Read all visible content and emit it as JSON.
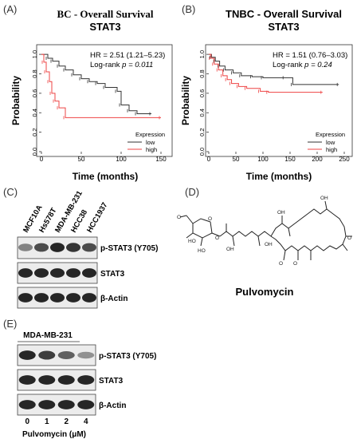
{
  "panels": {
    "A": "(A)",
    "B": "(B)",
    "C": "(C)",
    "D": "(D)",
    "E": "(E)"
  },
  "km_A": {
    "title_line1": "BC - Overall Survival",
    "title_line2": "STAT3",
    "hr": "HR = 2.51 (1.21–5.23)",
    "logrank_prefix": "Log-rank ",
    "logrank_p": "p = 0.011",
    "ylabel": "Probability",
    "xlabel": "Time (months)",
    "legend_title": "Expression",
    "legend_low": "low",
    "legend_high": "high",
    "xticks": [
      "0",
      "50",
      "100",
      "150"
    ],
    "yticks": [
      "0.0",
      "0.2",
      "0.4",
      "0.6",
      "0.8",
      "1.0"
    ]
  },
  "km_B": {
    "title_line1": "TNBC - Overall Survival",
    "title_line2": "STAT3",
    "hr": "HR = 1.51 (0.76–3.03)",
    "logrank_prefix": "Log-rank ",
    "logrank_p": "p = 0.24",
    "ylabel": "Probability",
    "xlabel": "Time (months)",
    "legend_title": "Expression",
    "legend_low": "low",
    "legend_high": "high",
    "xticks": [
      "0",
      "50",
      "100",
      "150",
      "200",
      "250"
    ],
    "yticks": [
      "0.0",
      "0.2",
      "0.4",
      "0.6",
      "0.8",
      "1.0"
    ]
  },
  "chart_data": [
    {
      "type": "line",
      "xlim": [
        0,
        150
      ],
      "ylim": [
        0,
        1.05
      ],
      "colors": {
        "low": "#333333",
        "high": "#ee4444"
      },
      "series": [
        {
          "name": "low",
          "steps": [
            [
              0,
              1.0
            ],
            [
              8,
              0.96
            ],
            [
              14,
              0.93
            ],
            [
              22,
              0.88
            ],
            [
              30,
              0.84
            ],
            [
              40,
              0.79
            ],
            [
              50,
              0.75
            ],
            [
              60,
              0.72
            ],
            [
              70,
              0.7
            ],
            [
              80,
              0.66
            ],
            [
              95,
              0.62
            ],
            [
              100,
              0.48
            ],
            [
              110,
              0.42
            ],
            [
              120,
              0.39
            ],
            [
              138,
              0.39
            ]
          ]
        },
        {
          "name": "high",
          "steps": [
            [
              0,
              1.0
            ],
            [
              3,
              0.92
            ],
            [
              6,
              0.82
            ],
            [
              10,
              0.72
            ],
            [
              13,
              0.6
            ],
            [
              17,
              0.52
            ],
            [
              22,
              0.45
            ],
            [
              30,
              0.35
            ],
            [
              150,
              0.35
            ]
          ]
        }
      ]
    },
    {
      "type": "line",
      "xlim": [
        0,
        250
      ],
      "ylim": [
        0,
        1.05
      ],
      "colors": {
        "low": "#333333",
        "high": "#ee4444"
      },
      "series": [
        {
          "name": "low",
          "steps": [
            [
              0,
              1.0
            ],
            [
              5,
              0.97
            ],
            [
              12,
              0.93
            ],
            [
              20,
              0.88
            ],
            [
              30,
              0.84
            ],
            [
              45,
              0.81
            ],
            [
              60,
              0.78
            ],
            [
              80,
              0.77
            ],
            [
              100,
              0.76
            ],
            [
              140,
              0.76
            ],
            [
              155,
              0.69
            ],
            [
              240,
              0.69
            ]
          ]
        },
        {
          "name": "high",
          "steps": [
            [
              0,
              1.0
            ],
            [
              4,
              0.96
            ],
            [
              10,
              0.9
            ],
            [
              18,
              0.84
            ],
            [
              26,
              0.78
            ],
            [
              34,
              0.74
            ],
            [
              42,
              0.7
            ],
            [
              55,
              0.67
            ],
            [
              70,
              0.65
            ],
            [
              95,
              0.62
            ],
            [
              110,
              0.61
            ],
            [
              210,
              0.61
            ]
          ]
        }
      ]
    }
  ],
  "blot_C": {
    "lanes": [
      "MCF10A",
      "Hs578T",
      "MDA-MB-231",
      "HCC38",
      "HCC1937"
    ],
    "labels": [
      "p-STAT3 (Y705)",
      "STAT3",
      "β-Actin"
    ],
    "intensities": [
      [
        0.35,
        0.7,
        0.95,
        0.85,
        0.7
      ],
      [
        0.95,
        0.95,
        0.95,
        0.95,
        0.95
      ],
      [
        0.95,
        0.95,
        0.95,
        0.95,
        0.95
      ]
    ]
  },
  "structure_D": {
    "name": "Pulvomycin"
  },
  "blot_E": {
    "cell_line": "MDA-MB-231",
    "labels": [
      "p-STAT3 (Y705)",
      "STAT3",
      "β-Actin"
    ],
    "doses": [
      "0",
      "1",
      "2",
      "4"
    ],
    "xlabel": "Pulvomycin (μM)",
    "intensities": [
      [
        0.95,
        0.8,
        0.6,
        0.3
      ],
      [
        0.95,
        0.95,
        0.95,
        0.95
      ],
      [
        0.95,
        0.95,
        0.95,
        0.95
      ]
    ]
  }
}
